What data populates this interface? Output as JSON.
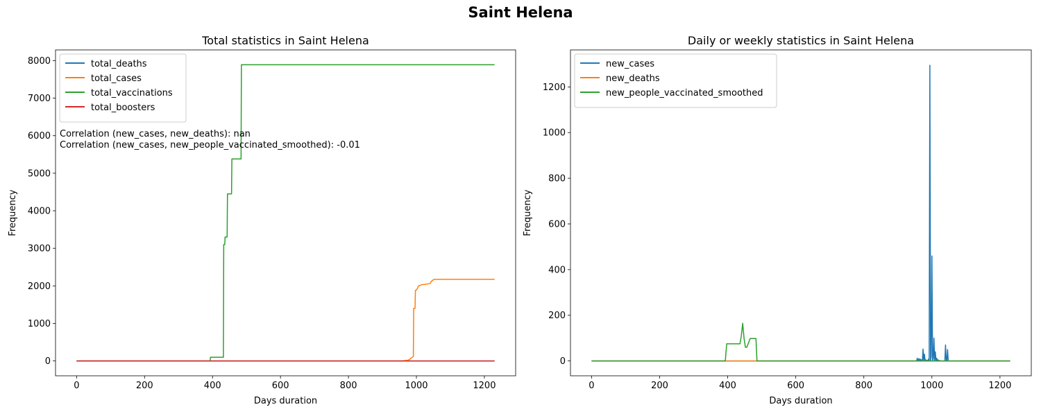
{
  "figure": {
    "suptitle": "Saint Helena"
  },
  "chart_data": [
    {
      "type": "line",
      "title": "Total statistics in Saint Helena",
      "xlabel": "Days duration",
      "ylabel": "Frequency",
      "xlim": [
        -62,
        1292
      ],
      "ylim": [
        -395,
        8285
      ],
      "xticks": [
        0,
        200,
        400,
        600,
        800,
        1000,
        1200
      ],
      "yticks": [
        0,
        1000,
        2000,
        3000,
        4000,
        5000,
        6000,
        7000,
        8000
      ],
      "legend_placement": "upper left",
      "annotations": [
        "Correlation (new_cases, new_deaths): nan",
        "Correlation (new_cases, new_people_vaccinated_smoothed): -0.01"
      ],
      "series": [
        {
          "name": "total_deaths",
          "color": "#1f77b4",
          "x": [
            0,
            1230
          ],
          "y": [
            0,
            0
          ]
        },
        {
          "name": "total_cases",
          "color": "#ff7f0e",
          "x": [
            0,
            955,
            965,
            975,
            980,
            985,
            988,
            991,
            992,
            996,
            997,
            1000,
            1004,
            1006,
            1010,
            1015,
            1025,
            1040,
            1043,
            1048,
            1052,
            1100,
            1230
          ],
          "y": [
            0,
            0,
            10,
            20,
            40,
            80,
            100,
            120,
            1400,
            1400,
            1880,
            1890,
            1950,
            2000,
            2010,
            2030,
            2040,
            2060,
            2110,
            2150,
            2175,
            2175,
            2175
          ]
        },
        {
          "name": "total_vaccinations",
          "color": "#2ca02c",
          "x": [
            0,
            393,
            394,
            432,
            433,
            436,
            437,
            443,
            444,
            456,
            457,
            484,
            485,
            1230
          ],
          "y": [
            0,
            0,
            100,
            100,
            3100,
            3100,
            3300,
            3300,
            4450,
            4450,
            5380,
            5380,
            7890,
            7890
          ]
        },
        {
          "name": "total_boosters",
          "color": "#d62728",
          "x": [
            0,
            1230
          ],
          "y": [
            0,
            0
          ]
        }
      ]
    },
    {
      "type": "line",
      "title": "Daily or weekly statistics in Saint Helena",
      "xlabel": "Days duration",
      "ylabel": "Frequency",
      "xlim": [
        -62,
        1292
      ],
      "ylim": [
        -65,
        1362
      ],
      "xticks": [
        0,
        200,
        400,
        600,
        800,
        1000,
        1200
      ],
      "yticks": [
        0,
        200,
        400,
        600,
        800,
        1000,
        1200
      ],
      "legend_placement": "upper left",
      "series": [
        {
          "name": "new_cases",
          "color": "#1f77b4",
          "x": [
            0,
            955,
            957,
            959,
            962,
            964,
            966,
            968,
            970,
            972,
            974,
            976,
            978,
            980,
            982,
            984,
            986,
            988,
            990,
            992,
            994,
            996,
            998,
            1000,
            1002,
            1004,
            1006,
            1008,
            1010,
            1012,
            1014,
            1016,
            1018,
            1020,
            1022,
            1024,
            1026,
            1028,
            1030,
            1032,
            1038,
            1040,
            1042,
            1044,
            1046,
            1048,
            1050,
            1052,
            1054,
            1230
          ],
          "y": [
            0,
            0,
            12,
            0,
            10,
            0,
            8,
            0,
            5,
            0,
            52,
            0,
            30,
            0,
            5,
            0,
            3,
            0,
            8,
            0,
            1295,
            0,
            20,
            460,
            0,
            10,
            100,
            0,
            40,
            0,
            12,
            0,
            5,
            0,
            2,
            0,
            0,
            0,
            0,
            0,
            0,
            70,
            0,
            0,
            50,
            0,
            0,
            0,
            0,
            0
          ]
        },
        {
          "name": "new_deaths",
          "color": "#ff7f0e",
          "x": [
            0,
            1230
          ],
          "y": [
            0,
            0
          ]
        },
        {
          "name": "new_people_vaccinated_smoothed",
          "color": "#2ca02c",
          "x": [
            0,
            393,
            397,
            430,
            436,
            440,
            444,
            448,
            452,
            456,
            460,
            466,
            470,
            474,
            483,
            486,
            490,
            1230
          ],
          "y": [
            0,
            0,
            75,
            75,
            75,
            110,
            165,
            100,
            60,
            60,
            75,
            98,
            98,
            98,
            98,
            0,
            0,
            0
          ]
        }
      ]
    }
  ]
}
